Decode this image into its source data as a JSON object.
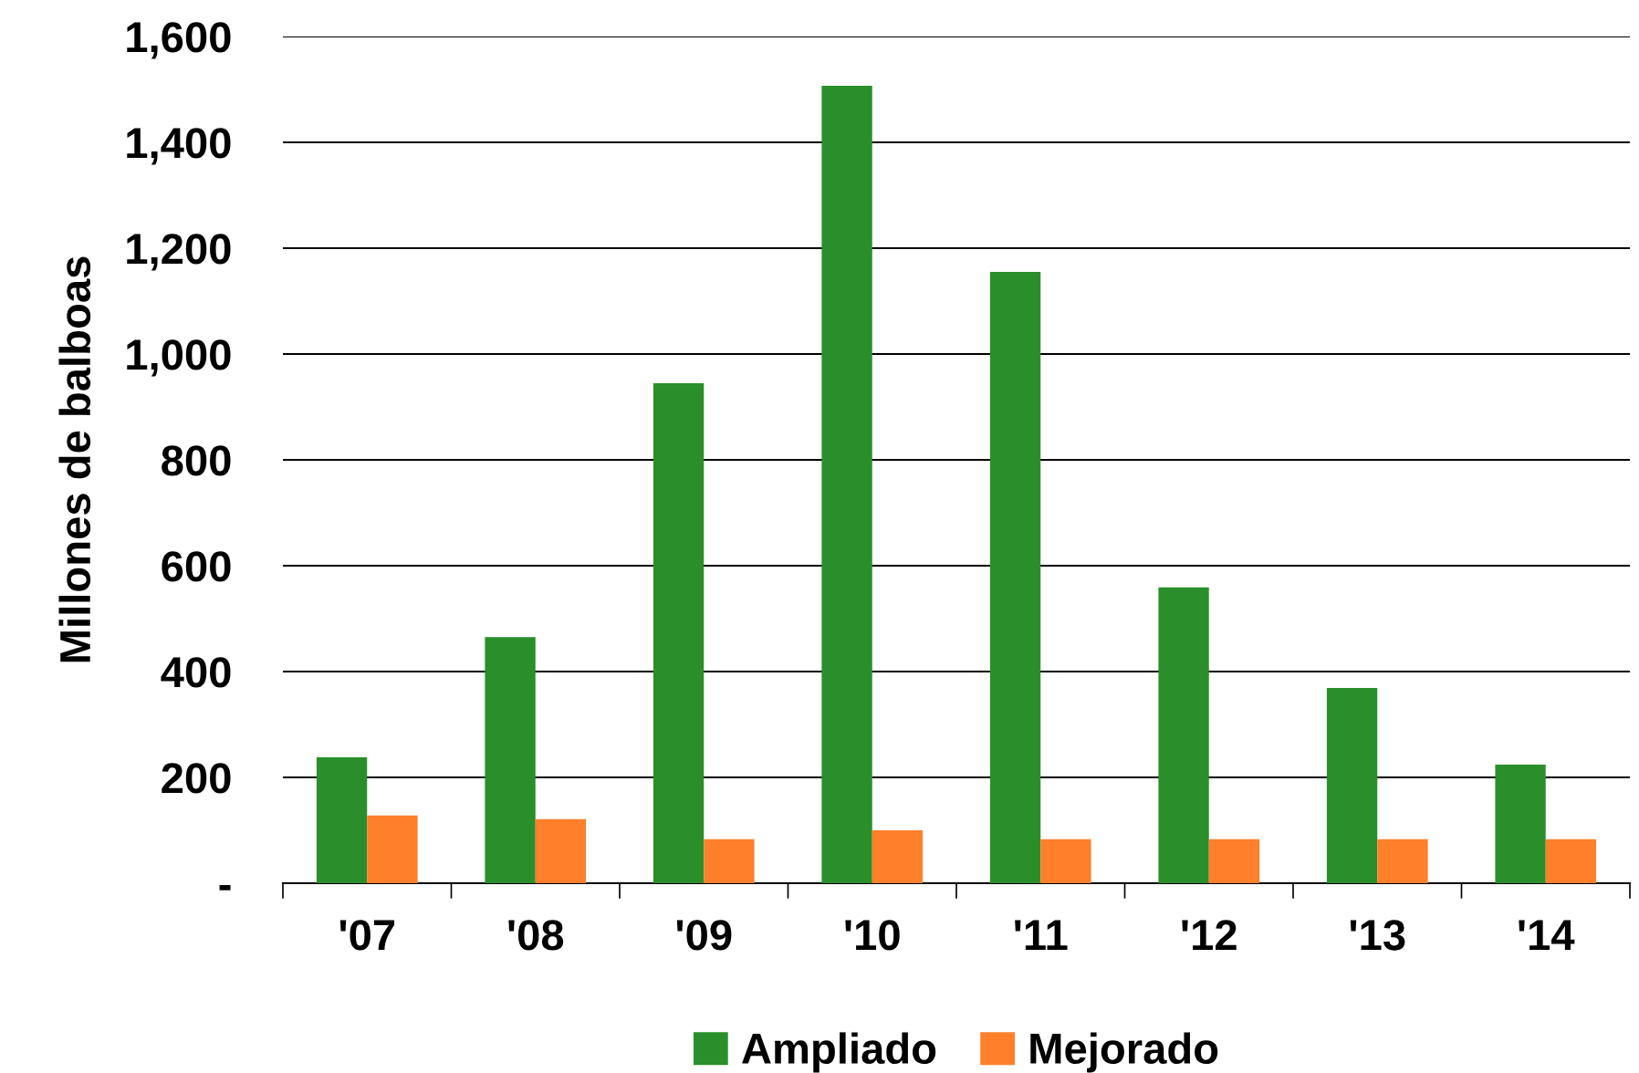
{
  "chart_data": {
    "type": "bar",
    "ylabel": "Millones de balboas",
    "categories": [
      "'07",
      "'08",
      "'09",
      "'10",
      "'11",
      "'12",
      "'13",
      "'14"
    ],
    "series": [
      {
        "name": "Ampliado",
        "color": "#2a8f2a",
        "values": [
          238,
          465,
          945,
          1507,
          1155,
          559,
          369,
          224
        ]
      },
      {
        "name": "Mejorado",
        "color": "#ff7f2a",
        "values": [
          128,
          121,
          83,
          100,
          83,
          83,
          83,
          83
        ]
      }
    ],
    "ylim": [
      0,
      1600
    ],
    "yticks": [
      {
        "value": 0,
        "label": "-"
      },
      {
        "value": 200,
        "label": "200"
      },
      {
        "value": 400,
        "label": "400"
      },
      {
        "value": 600,
        "label": "600"
      },
      {
        "value": 800,
        "label": "800"
      },
      {
        "value": 1000,
        "label": "1,000"
      },
      {
        "value": 1200,
        "label": "1,200"
      },
      {
        "value": 1400,
        "label": "1,400"
      },
      {
        "value": 1600,
        "label": "1,600"
      }
    ],
    "grid": "y",
    "legend": "bottom"
  }
}
